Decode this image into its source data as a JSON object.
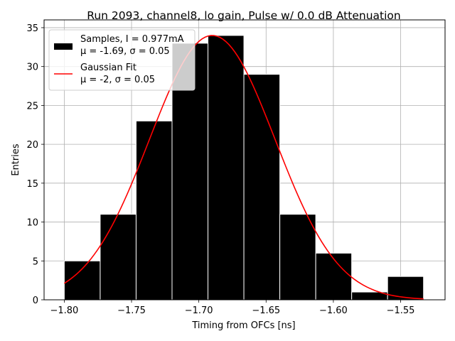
{
  "chart_data": {
    "type": "bar",
    "title": "Run 2093, channel8, lo gain, Pulse w/ 0.0 dB Attenuation",
    "xlabel": "Timing from OFCs [ns]",
    "ylabel": "Entries",
    "xlim": [
      -1.815,
      -1.517
    ],
    "ylim": [
      0,
      36
    ],
    "grid": true,
    "x_ticks": [
      -1.8,
      -1.75,
      -1.7,
      -1.65,
      -1.6,
      -1.55
    ],
    "x_tick_labels": [
      "−1.80",
      "−1.75",
      "−1.70",
      "−1.65",
      "−1.60",
      "−1.55"
    ],
    "y_ticks": [
      0,
      5,
      10,
      15,
      20,
      25,
      30,
      35
    ],
    "y_tick_labels": [
      "0",
      "5",
      "10",
      "15",
      "20",
      "25",
      "30",
      "35"
    ],
    "bin_edges": [
      -1.8,
      -1.7733,
      -1.7466,
      -1.7199,
      -1.6932,
      -1.6665,
      -1.6398,
      -1.6131,
      -1.5864,
      -1.5597,
      -1.533
    ],
    "values": [
      5,
      11,
      23,
      33,
      34,
      29,
      11,
      6,
      1,
      3
    ],
    "series": [
      {
        "name": "Samples, I = 0.977mA",
        "name_line2": "μ = -1.69, σ = 0.05",
        "kind": "histogram",
        "color": "#000000",
        "edgecolor": "#ffffff"
      },
      {
        "name": "Gaussian Fit",
        "name_line2": "μ = -2, σ = 0.05",
        "kind": "line",
        "color": "#ff0000",
        "fit": {
          "amplitude": 34,
          "mu": -1.69,
          "sigma": 0.0467,
          "x_start": -1.8,
          "x_end": -1.533
        }
      }
    ],
    "legend_location": "upper-left"
  }
}
